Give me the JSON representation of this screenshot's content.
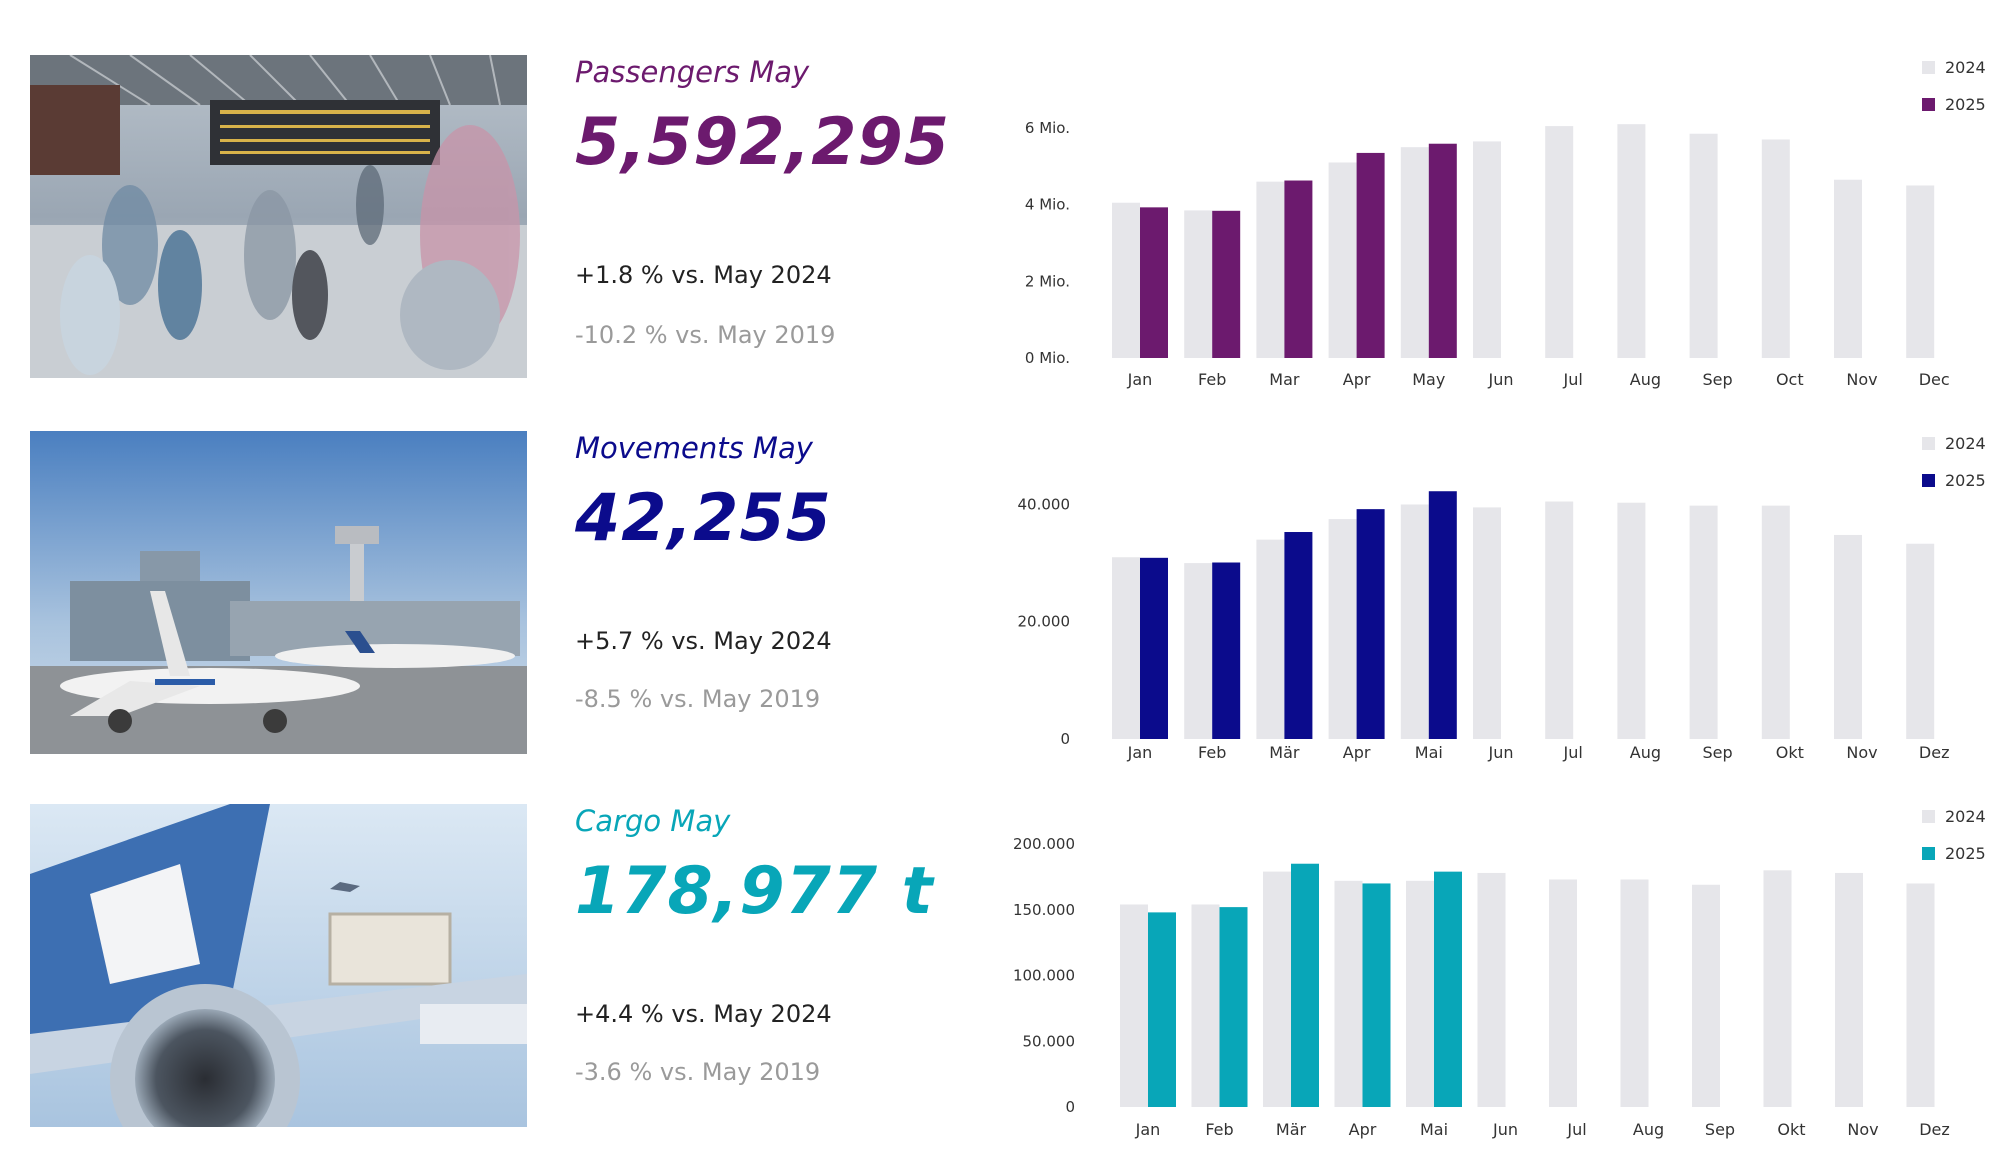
{
  "colors": {
    "passengers": "#6c1a6e",
    "movements": "#0b0b8c",
    "cargo": "#08a6b8",
    "prior_year_bar": "#e6e6ea"
  },
  "passengers": {
    "title": "Passengers May",
    "value": "5,592,295",
    "vs_prev_year": "+1.8 % vs. May 2024",
    "vs_2019": "-10.2 % vs. May 2019"
  },
  "movements": {
    "title": "Movements May",
    "value": "42,255",
    "vs_prev_year": "+5.7 % vs. May 2024",
    "vs_2019": "-8.5 % vs. May 2019"
  },
  "cargo": {
    "title": "Cargo May",
    "value": "178,977 t",
    "vs_prev_year": "+4.4 % vs. May 2024",
    "vs_2019": "-3.6 % vs. May 2019"
  },
  "chart_data": [
    {
      "type": "bar",
      "categories": [
        "Jan",
        "Feb",
        "Mar",
        "Apr",
        "May",
        "Jun",
        "Jul",
        "Aug",
        "Sep",
        "Oct",
        "Nov",
        "Dec"
      ],
      "yticks": [
        0,
        2,
        4,
        6
      ],
      "ytick_labels": [
        "0 Mio.",
        "2 Mio.",
        "4 Mio.",
        "6 Mio."
      ],
      "ylim": [
        0,
        6.6
      ],
      "legend_position": "top-right",
      "series": [
        {
          "name": "2024",
          "values": [
            4.05,
            3.85,
            4.6,
            5.1,
            5.5,
            5.65,
            6.05,
            6.1,
            5.85,
            5.7,
            4.65,
            4.5
          ]
        },
        {
          "name": "2025",
          "values": [
            3.93,
            3.84,
            4.63,
            5.35,
            5.59,
            null,
            null,
            null,
            null,
            null,
            null,
            null
          ]
        }
      ]
    },
    {
      "type": "bar",
      "categories": [
        "Jan",
        "Feb",
        "Mär",
        "Apr",
        "Mai",
        "Jun",
        "Jul",
        "Aug",
        "Sep",
        "Okt",
        "Nov",
        "Dez"
      ],
      "yticks": [
        0,
        20000,
        40000
      ],
      "ytick_labels": [
        "0",
        "20.000",
        "40.000"
      ],
      "ylim": [
        0,
        44000
      ],
      "legend_position": "top-right",
      "series": [
        {
          "name": "2024",
          "values": [
            31000,
            30000,
            34000,
            37500,
            40000,
            39500,
            40500,
            40300,
            39800,
            39800,
            34800,
            33300
          ]
        },
        {
          "name": "2025",
          "values": [
            30900,
            30100,
            35300,
            39200,
            42255,
            null,
            null,
            null,
            null,
            null,
            null,
            null
          ]
        }
      ]
    },
    {
      "type": "bar",
      "categories": [
        "Jan",
        "Feb",
        "Mär",
        "Apr",
        "Mai",
        "Jun",
        "Jul",
        "Aug",
        "Sep",
        "Okt",
        "Nov",
        "Dez"
      ],
      "yticks": [
        0,
        50000,
        100000,
        150000,
        200000
      ],
      "ytick_labels": [
        "0",
        "50.000",
        "100.000",
        "150.000",
        "200.000"
      ],
      "ylim": [
        0,
        200000
      ],
      "legend_position": "top-right",
      "series": [
        {
          "name": "2024",
          "values": [
            154000,
            154000,
            179000,
            172000,
            172000,
            178000,
            173000,
            173000,
            169000,
            180000,
            178000,
            170000
          ]
        },
        {
          "name": "2025",
          "values": [
            148000,
            152000,
            185000,
            170000,
            178977,
            null,
            null,
            null,
            null,
            null,
            null,
            null
          ]
        }
      ]
    }
  ]
}
